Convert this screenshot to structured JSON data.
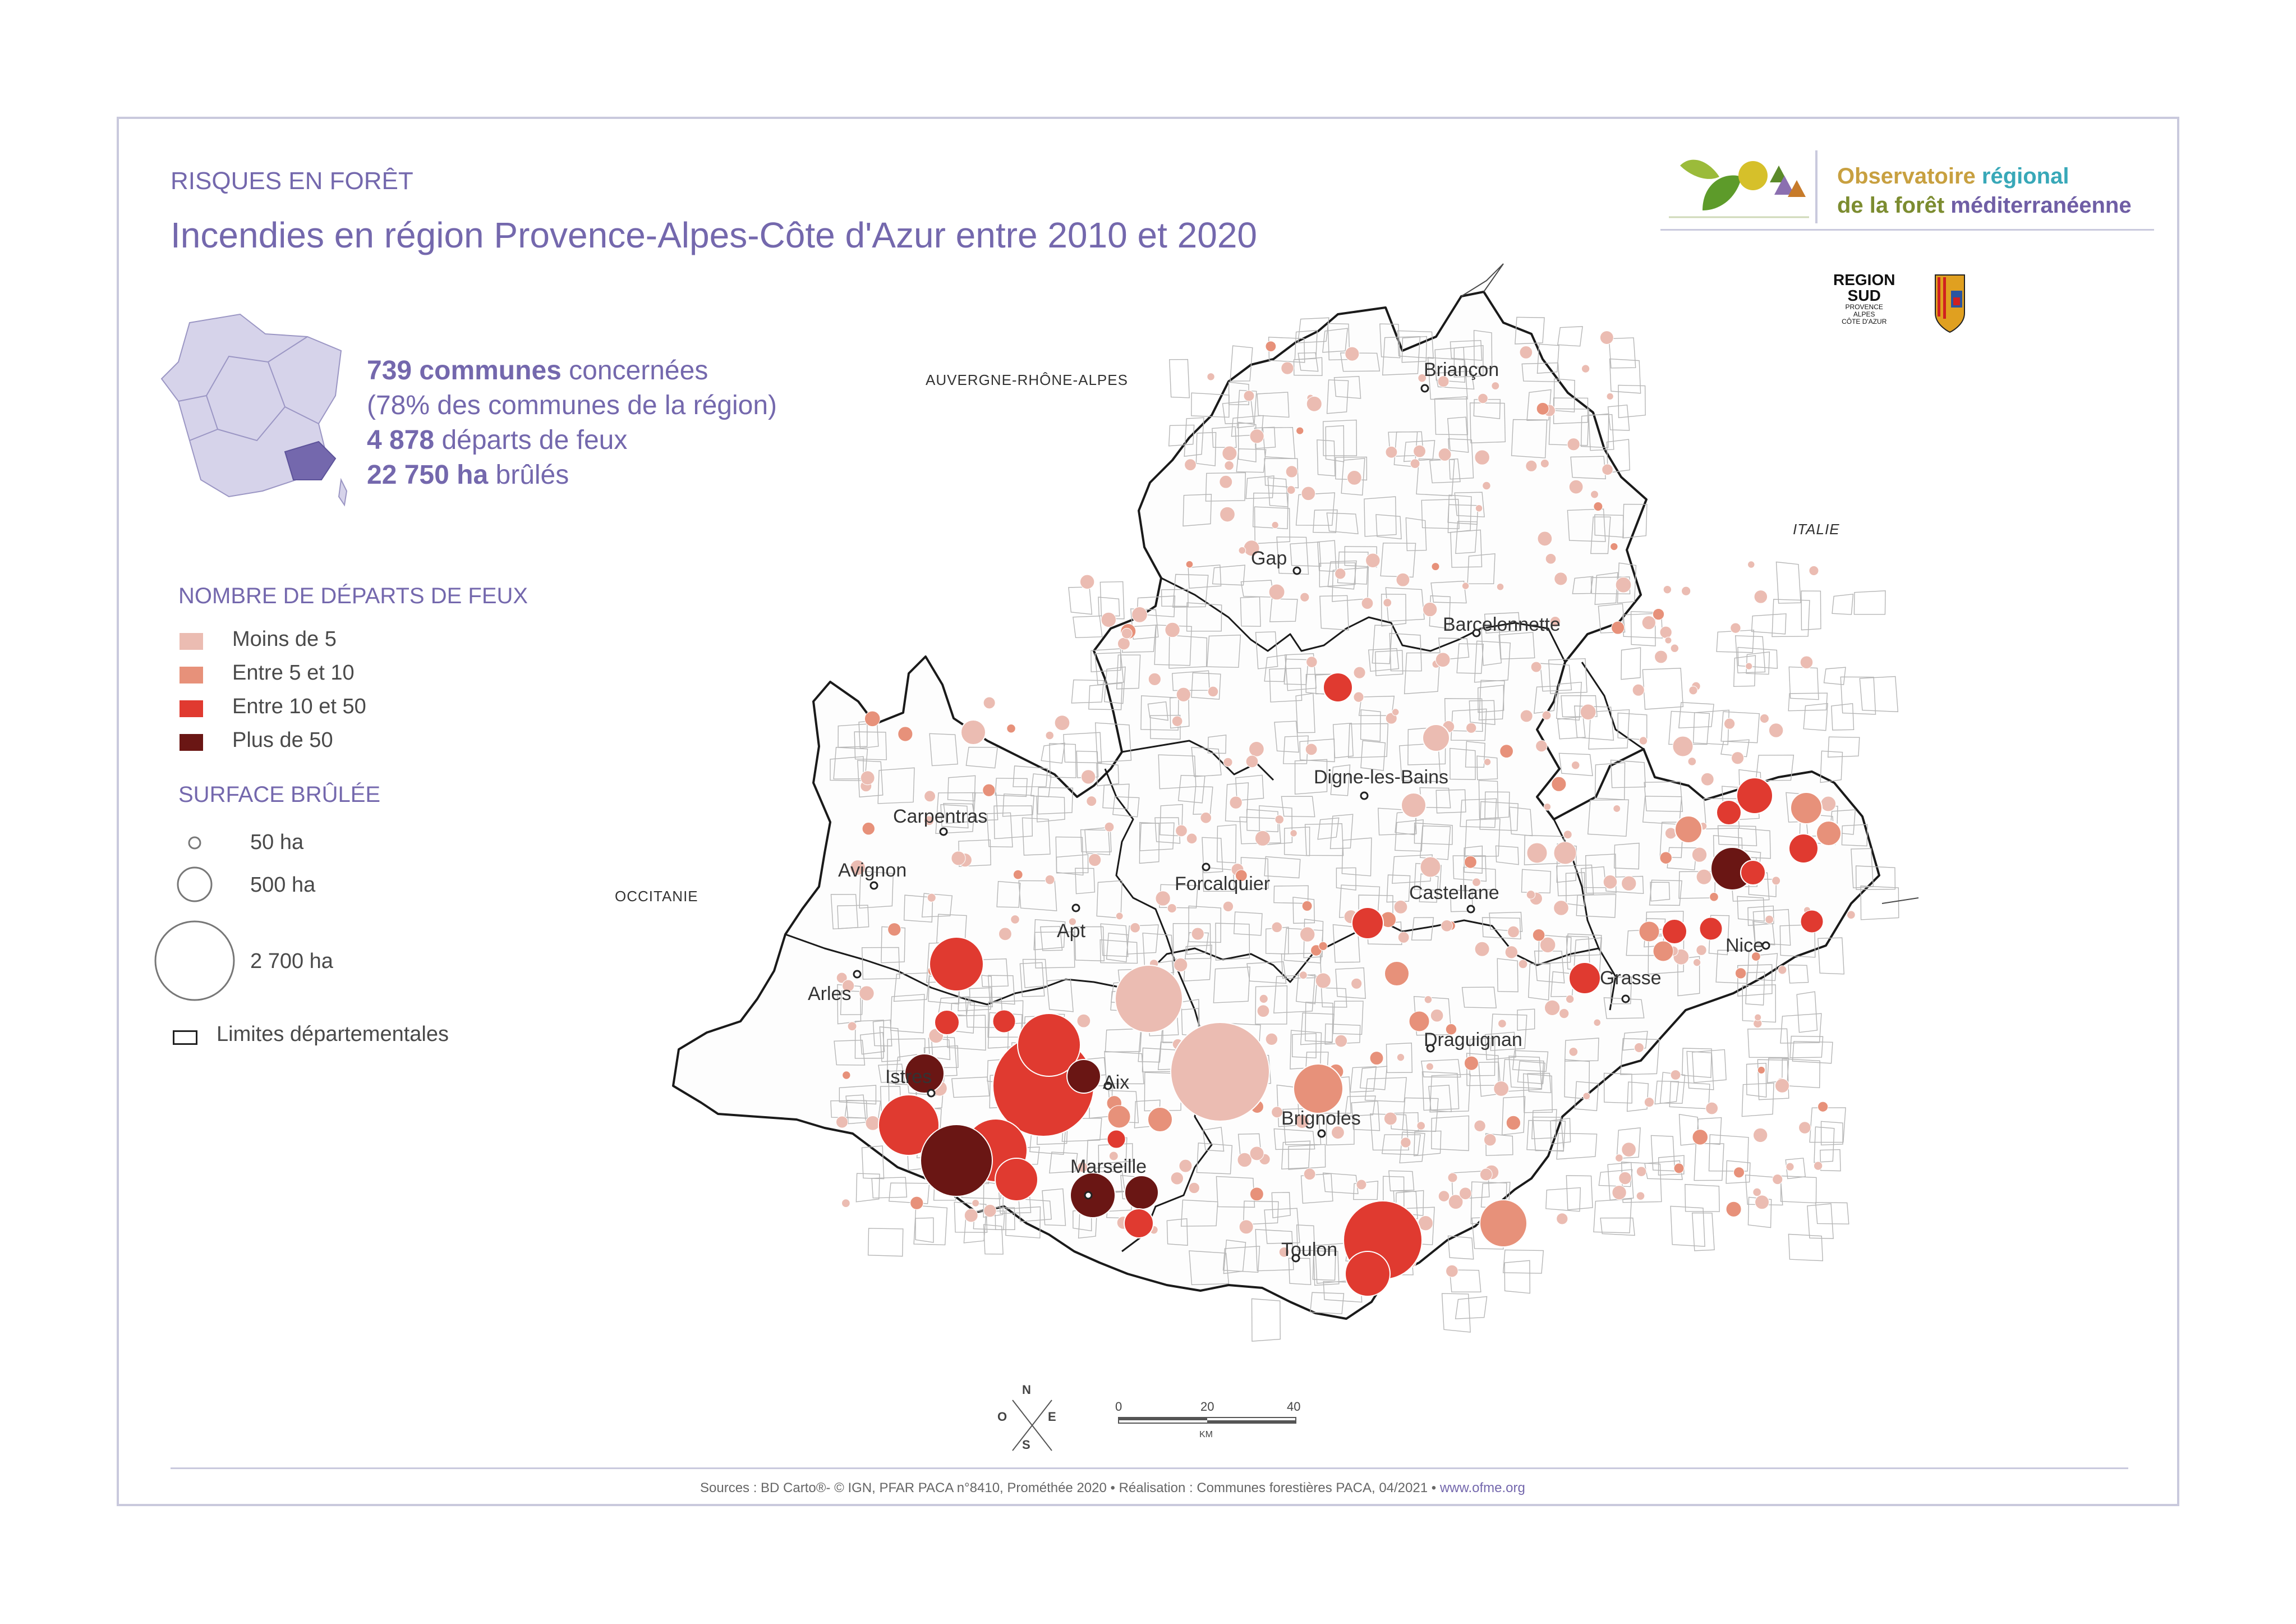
{
  "header": {
    "kicker": "RISQUES EN FORÊT",
    "title": "Incendies en région Provence-Alpes-Côte d'Azur entre 2010 et 2020"
  },
  "stats": {
    "communes_value": "739 communes",
    "communes_label": " concernées",
    "communes_share": "(78% des communes de la région)",
    "departs_value": "4 878",
    "departs_label": " départs de feux",
    "surface_value": "22 750 ha",
    "surface_label": " brûlés"
  },
  "legend": {
    "departs_title": "NOMBRE DE DÉPARTS DE FEUX",
    "departs_classes": [
      {
        "label": "Moins de 5",
        "color": "#ebbcb2"
      },
      {
        "label": "Entre 5 et 10",
        "color": "#e7917a"
      },
      {
        "label": "Entre 10 et 50",
        "color": "#e03a30"
      },
      {
        "label": "Plus de 50",
        "color": "#6a1614"
      }
    ],
    "surface_title": "SURFACE BRÛLÉE",
    "surface_classes": [
      {
        "label": "50 ha",
        "ha": 50
      },
      {
        "label": "500 ha",
        "ha": 500
      },
      {
        "label": "2 700 ha",
        "ha": 2700
      }
    ],
    "limits_label": "Limites départementales"
  },
  "map": {
    "places": {
      "briancon": "Briançon",
      "gap": "Gap",
      "barcelonnette": "Barcelonnette",
      "digne": "Digne-les-Bains",
      "carpentras": "Carpentras",
      "avignon": "Avignon",
      "forcalquier": "Forcalquier",
      "castellane": "Castellane",
      "apt": "Apt",
      "arles": "Arles",
      "grasse": "Grasse",
      "nice": "Nice",
      "draguignan": "Draguignan",
      "istres": "Istres",
      "aix": "Aix",
      "brignoles": "Brignoles",
      "marseille": "Marseille",
      "toulon": "Toulon"
    },
    "neighbours": {
      "aura": "AUVERGNE-RHÔNE-ALPES",
      "italie": "ITALIE",
      "occitanie": "OCCITANIE"
    }
  },
  "scale_bar": {
    "ticks": [
      "0",
      "20",
      "40"
    ],
    "unit": "KM"
  },
  "compass": {
    "n": "N",
    "s": "S",
    "e": "E",
    "o": "O"
  },
  "branding": {
    "obs_w1": "Observatoire ",
    "obs_w2": "régional",
    "obs_w3": "de la ",
    "obs_w4": "forêt",
    "obs_w5": " méditerranéenne",
    "region_a": "REGION",
    "region_b": "SUD",
    "region_c": "PROVENCE",
    "region_d": "ALPES",
    "region_e": "CÔTE D'AZUR"
  },
  "footer": {
    "sources": "Sources : BD Carto®- © IGN, PFAR PACA n°8410,  Prométhée 2020 • Réalisation : Communes forestières PACA, 04/2021 • ",
    "url": "www.ofme.org"
  }
}
